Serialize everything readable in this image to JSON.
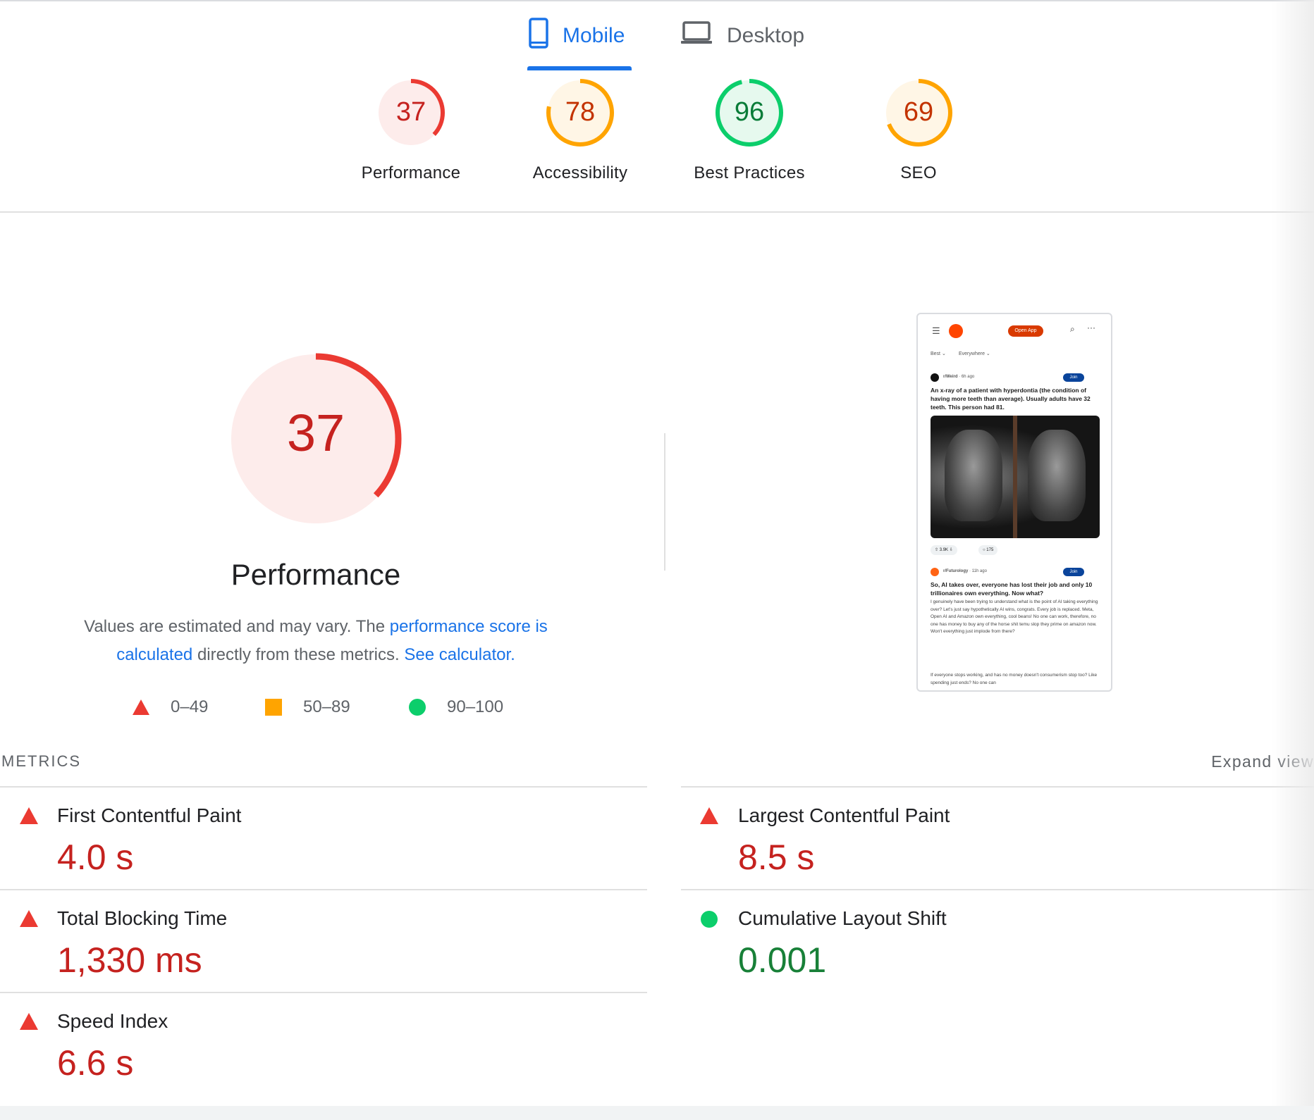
{
  "tabs": [
    {
      "label": "Mobile",
      "active": true,
      "icon": "smartphone-icon"
    },
    {
      "label": "Desktop",
      "active": false,
      "icon": "laptop-icon"
    }
  ],
  "scores": [
    {
      "value": "37",
      "label": "Performance",
      "level": "fail"
    },
    {
      "value": "78",
      "label": "Accessibility",
      "level": "average"
    },
    {
      "value": "96",
      "label": "Best Practices",
      "level": "pass"
    },
    {
      "value": "69",
      "label": "SEO",
      "level": "average"
    }
  ],
  "performance": {
    "score": "37",
    "title": "Performance",
    "desc_text1": "Values are estimated and may vary. The ",
    "desc_link1": "performance score is calculated",
    "desc_text2": " directly from these metrics. ",
    "desc_link2": "See calculator."
  },
  "legend": [
    {
      "range": "0–49",
      "shape": "triangle",
      "color": "#eb3a32"
    },
    {
      "range": "50–89",
      "shape": "square",
      "color": "#ffa400"
    },
    {
      "range": "90–100",
      "shape": "circle",
      "color": "#0cce6b"
    }
  ],
  "colors": {
    "fail": "#eb3a32",
    "average": "#ffa400",
    "pass": "#0cce6b",
    "link": "#1a73e8"
  },
  "preview": {
    "open_app": "Open App",
    "filter_best": "Best",
    "filter_everywhere": "Everywhere",
    "post1": {
      "community": "r/Weird",
      "time": "6h ago",
      "join": "Join",
      "title": "An x-ray of a patient with hyperdontia (the condition of having more teeth than average). Usually adults have 32 teeth. This person had 81.",
      "upvotes": "3.9K",
      "comments": "175"
    },
    "post2": {
      "community": "r/Futurology",
      "time": "11h ago",
      "join": "Join",
      "title": "So, AI takes over, everyone has lost their job and only 10 trillionaires own everything. Now what?",
      "body1": "I genuinely have been trying to understand what is the point of AI taking everything over? Let's just say hypothetically AI wins, congrats. Every job is replaced. Meta, Open AI and Amazon own everything, cool beans! No one can work, therefore, no one has money to buy any of the horse shit temu slop they prime on amazon now. Won't everything just implode from there?",
      "body2": "If everyone stops working, and has no money doesn't consumerism stop too? Like spending just ends? No one can"
    }
  },
  "metrics": {
    "heading": "METRICS",
    "expand": "Expand view",
    "items": [
      {
        "name": "First Contentful Paint",
        "value": "4.0 s",
        "status": "fail"
      },
      {
        "name": "Largest Contentful Paint",
        "value": "8.5 s",
        "status": "fail"
      },
      {
        "name": "Total Blocking Time",
        "value": "1,330 ms",
        "status": "fail"
      },
      {
        "name": "Cumulative Layout Shift",
        "value": "0.001",
        "status": "pass"
      },
      {
        "name": "Speed Index",
        "value": "6.6 s",
        "status": "fail"
      }
    ]
  }
}
